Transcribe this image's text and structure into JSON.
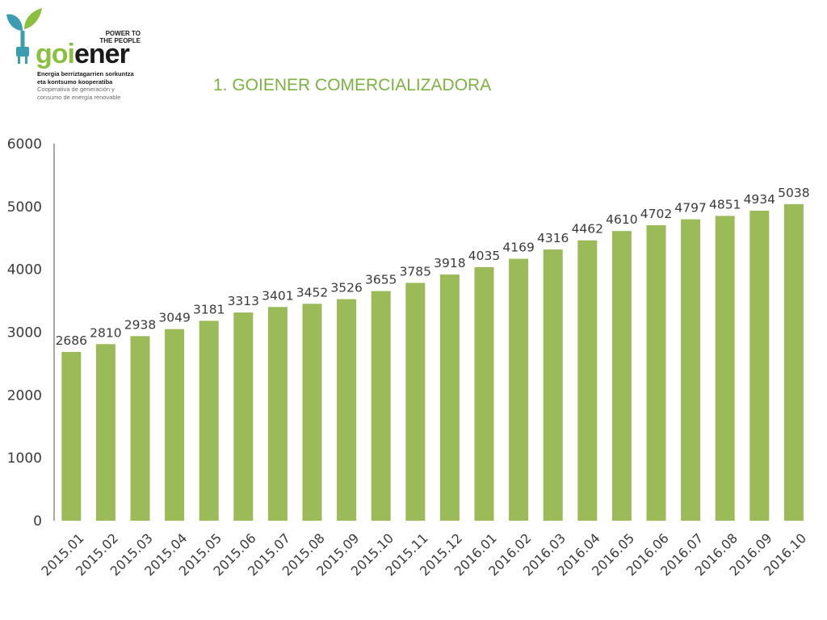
{
  "logo": {
    "tagline_line1": "POWER TO",
    "tagline_line2": "THE PEOPLE",
    "word_part1": "goi",
    "word_part2": "ener",
    "sub_line1": "Energia berriztagarrien sorkuntza",
    "sub_line2": "eta kontsumo kooperatiba",
    "sub_line3": "Cooperativa de generación y",
    "sub_line4": "consumo de energía renovable"
  },
  "slide": {
    "title": "1. GOIENER COMERCIALIZADORA"
  },
  "colors": {
    "bar": "#9bbb59",
    "title": "#7db143",
    "logo_green": "#8bbf3f",
    "logo_teal": "#3a9db0"
  },
  "chart_data": {
    "type": "bar",
    "title": "",
    "xlabel": "",
    "ylabel": "",
    "ylim": [
      0,
      6000
    ],
    "yticks": [
      0,
      1000,
      2000,
      3000,
      4000,
      5000,
      6000
    ],
    "grid": false,
    "categories": [
      "2015.01",
      "2015.02",
      "2015.03",
      "2015.04",
      "2015.05",
      "2015.06",
      "2015.07",
      "2015.08",
      "2015.09",
      "2015.10",
      "2015.11",
      "2015.12",
      "2016.01",
      "2016.02",
      "2016.03",
      "2016.04",
      "2016.05",
      "2016.06",
      "2016.07",
      "2016.08",
      "2016.09",
      "2016.10"
    ],
    "values": [
      2686,
      2810,
      2938,
      3049,
      3181,
      3313,
      3401,
      3452,
      3526,
      3655,
      3785,
      3918,
      4035,
      4169,
      4316,
      4462,
      4610,
      4702,
      4797,
      4851,
      4934,
      5038
    ]
  }
}
